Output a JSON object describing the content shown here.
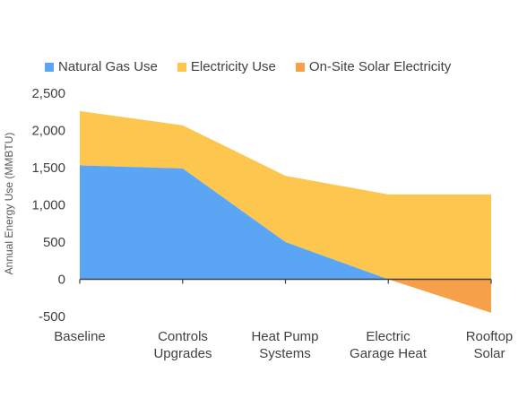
{
  "chart_data": {
    "type": "area",
    "title": "",
    "xlabel": "",
    "ylabel": "Annual Energy Use  (MMBTU)",
    "ylim": [
      -500,
      2500
    ],
    "yticks": [
      2500,
      2000,
      1500,
      1000,
      500,
      0,
      -500
    ],
    "ytick_labels": [
      "2,500",
      "2,000",
      "1,500",
      "1,000",
      "500",
      "0",
      "-500"
    ],
    "categories": [
      [
        "Baseline"
      ],
      [
        "Controls",
        "Upgrades"
      ],
      [
        "Heat Pump",
        "Systems"
      ],
      [
        "Electric",
        "Garage Heat"
      ],
      [
        "Rooftop",
        "Solar"
      ]
    ],
    "grid": false,
    "legend_position": "top",
    "series": [
      {
        "name": "Natural Gas Use",
        "color": "#5aa6f5",
        "values": [
          1530,
          1490,
          500,
          0,
          0
        ]
      },
      {
        "name": "Electricity Use",
        "color": "#fcc64f",
        "values": [
          730,
          580,
          890,
          1140,
          1140
        ]
      },
      {
        "name": "On-Site Solar Electricity",
        "color": "#f7a04a",
        "values": [
          0,
          0,
          0,
          0,
          -450
        ]
      }
    ]
  }
}
